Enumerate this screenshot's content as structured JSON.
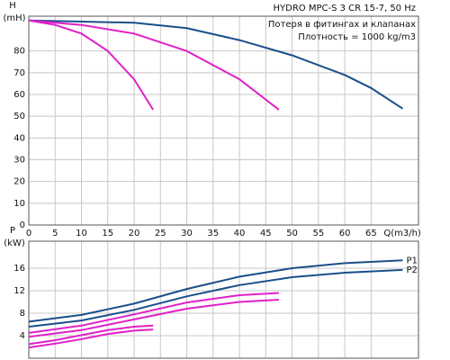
{
  "chart_data": [
    {
      "type": "line",
      "y_label": "H",
      "y_unit": "(mH)",
      "x_label": "Q(m3/h)",
      "annotations": [
        "HYDRO MPC-S 3 CR 15-7, 50 Hz",
        "Потеря в фитингах и клапанах",
        "Плотность = 1000 kg/m3"
      ],
      "xlim": [
        0,
        74
      ],
      "ylim": [
        0,
        96
      ],
      "xticks": [
        0,
        5,
        10,
        15,
        20,
        25,
        30,
        35,
        40,
        45,
        50,
        55,
        60,
        65
      ],
      "yticks": [
        0,
        10,
        20,
        30,
        40,
        50,
        60,
        70,
        80
      ],
      "grid": true,
      "series": [
        {
          "color": "#1a4f8a",
          "x": [
            0,
            10,
            20,
            30,
            40,
            50,
            60,
            65,
            71
          ],
          "values": [
            94,
            93.5,
            93,
            90.5,
            85,
            78,
            69,
            63,
            53.5
          ]
        },
        {
          "color": "#e020c8",
          "x": [
            0,
            10,
            20,
            30,
            40,
            47.5
          ],
          "values": [
            94,
            92,
            88,
            80,
            67,
            53
          ]
        },
        {
          "color": "#e020c8",
          "x": [
            0,
            5,
            10,
            15,
            20,
            23.6
          ],
          "values": [
            94,
            92,
            88,
            80,
            67,
            53
          ]
        }
      ]
    },
    {
      "type": "line",
      "y_label": "P",
      "y_unit": "(kW)",
      "xlim": [
        0,
        74
      ],
      "ylim": [
        0,
        20.8
      ],
      "xticks": [
        0,
        5,
        10,
        15,
        20,
        25,
        30,
        35,
        40,
        45,
        50,
        55,
        60,
        65
      ],
      "yticks": [
        4,
        8,
        12,
        16
      ],
      "grid": true,
      "series": [
        {
          "name": "P1",
          "color": "#1a4f8a",
          "x": [
            0,
            10,
            20,
            30,
            40,
            50,
            60,
            71
          ],
          "values": [
            6.5,
            7.7,
            9.7,
            12.3,
            14.5,
            16,
            16.9,
            17.4
          ]
        },
        {
          "name": "P2",
          "color": "#1a4f8a",
          "x": [
            0,
            10,
            20,
            30,
            40,
            50,
            60,
            71
          ],
          "values": [
            5.6,
            6.7,
            8.6,
            11,
            13,
            14.4,
            15.2,
            15.7
          ]
        },
        {
          "color": "#e020c8",
          "x": [
            0,
            10,
            20,
            30,
            40,
            47.5
          ],
          "values": [
            4.5,
            5.8,
            7.8,
            9.9,
            11.2,
            11.6
          ]
        },
        {
          "color": "#e020c8",
          "x": [
            0,
            10,
            20,
            30,
            40,
            47.5
          ],
          "values": [
            3.8,
            5,
            6.9,
            8.8,
            10,
            10.4
          ]
        },
        {
          "color": "#e020c8",
          "x": [
            0,
            5,
            10,
            15,
            20,
            23.6
          ],
          "values": [
            2.5,
            3.2,
            4.1,
            5,
            5.6,
            5.8
          ]
        },
        {
          "color": "#e020c8",
          "x": [
            0,
            5,
            10,
            15,
            20,
            23.6
          ],
          "values": [
            1.9,
            2.6,
            3.4,
            4.3,
            4.9,
            5.1
          ]
        }
      ]
    }
  ]
}
